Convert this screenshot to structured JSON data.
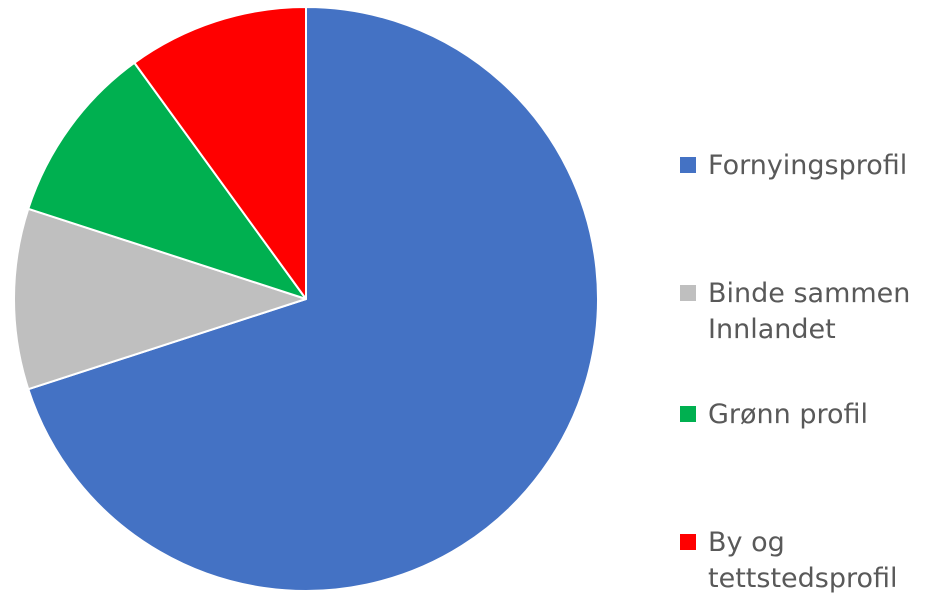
{
  "chart_data": {
    "type": "pie",
    "categories": [
      "Fornyingsprofil",
      "Binde sammen\nInnlandet",
      "Grønn profil",
      "By og\ntettstedsprofil"
    ],
    "values": [
      70,
      10,
      10,
      10
    ],
    "colors": [
      "#4472C4",
      "#BFBFBF",
      "#00B050",
      "#FF0000"
    ],
    "start_angle_deg": 0,
    "direction": "clockwise",
    "legend_position": "right",
    "title": ""
  }
}
